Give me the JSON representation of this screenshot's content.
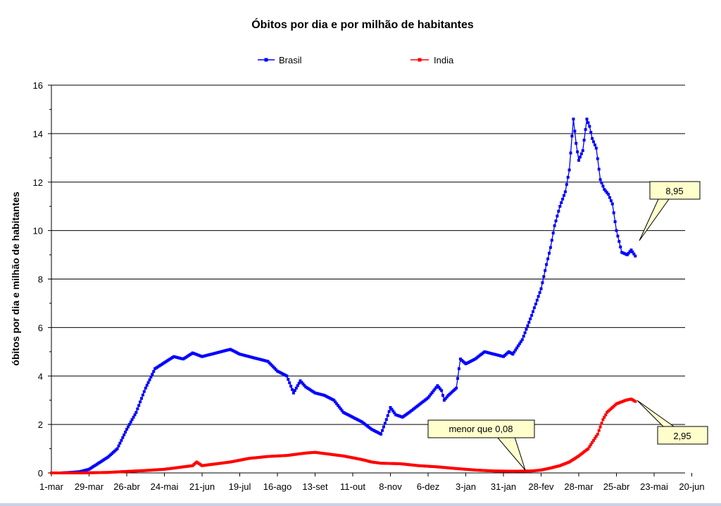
{
  "chart_data": {
    "type": "line",
    "title": "Óbitos por dia e por milhão de habitantes",
    "ylabel": "óbitos por dia e milhão de habitantes",
    "xlabel": "",
    "ylim": [
      0,
      16
    ],
    "yticks": [
      0,
      2,
      4,
      6,
      8,
      10,
      12,
      14,
      16
    ],
    "grid": "horizontal",
    "legend_position": "top-center",
    "x_tick_labels": [
      "1-mar",
      "29-mar",
      "26-abr",
      "24-mai",
      "21-jun",
      "19-jul",
      "16-ago",
      "13-set",
      "11-out",
      "8-nov",
      "6-dez",
      "3-jan",
      "31-jan",
      "28-fev",
      "28-mar",
      "25-abr",
      "23-mai",
      "20-jun"
    ],
    "series": [
      {
        "name": "Brasil",
        "color": "#0000ff",
        "marker": "square",
        "points": [
          [
            0,
            0
          ],
          [
            7,
            0
          ],
          [
            14,
            0.02
          ],
          [
            21,
            0.05
          ],
          [
            28,
            0.15
          ],
          [
            35,
            0.4
          ],
          [
            42,
            0.65
          ],
          [
            49,
            1.0
          ],
          [
            56,
            1.8
          ],
          [
            63,
            2.5
          ],
          [
            70,
            3.5
          ],
          [
            77,
            4.3
          ],
          [
            84,
            4.55
          ],
          [
            91,
            4.8
          ],
          [
            98,
            4.7
          ],
          [
            105,
            4.95
          ],
          [
            112,
            4.8
          ],
          [
            119,
            4.9
          ],
          [
            126,
            5.0
          ],
          [
            133,
            5.1
          ],
          [
            140,
            4.9
          ],
          [
            147,
            4.8
          ],
          [
            154,
            4.7
          ],
          [
            161,
            4.6
          ],
          [
            168,
            4.2
          ],
          [
            175,
            4.0
          ],
          [
            180,
            3.3
          ],
          [
            185,
            3.8
          ],
          [
            189,
            3.55
          ],
          [
            196,
            3.3
          ],
          [
            203,
            3.2
          ],
          [
            210,
            3.0
          ],
          [
            217,
            2.5
          ],
          [
            224,
            2.3
          ],
          [
            231,
            2.1
          ],
          [
            238,
            1.8
          ],
          [
            245,
            1.6
          ],
          [
            249,
            2.2
          ],
          [
            252,
            2.7
          ],
          [
            256,
            2.4
          ],
          [
            261,
            2.3
          ],
          [
            266,
            2.5
          ],
          [
            273,
            2.8
          ],
          [
            280,
            3.1
          ],
          [
            287,
            3.6
          ],
          [
            290,
            3.4
          ],
          [
            292,
            3.0
          ],
          [
            295,
            3.2
          ],
          [
            301,
            3.5
          ],
          [
            304,
            4.7
          ],
          [
            308,
            4.5
          ],
          [
            315,
            4.7
          ],
          [
            322,
            5.0
          ],
          [
            329,
            4.9
          ],
          [
            336,
            4.8
          ],
          [
            340,
            5.0
          ],
          [
            343,
            4.9
          ],
          [
            350,
            5.5
          ],
          [
            357,
            6.5
          ],
          [
            364,
            7.6
          ],
          [
            368,
            8.6
          ],
          [
            371,
            9.3
          ],
          [
            374,
            10.2
          ],
          [
            378,
            11.0
          ],
          [
            382,
            11.6
          ],
          [
            385,
            12.5
          ],
          [
            388,
            14.6
          ],
          [
            390,
            13.6
          ],
          [
            392,
            12.9
          ],
          [
            395,
            13.3
          ],
          [
            398,
            14.6
          ],
          [
            400,
            14.3
          ],
          [
            402,
            13.8
          ],
          [
            405,
            13.4
          ],
          [
            408,
            12.1
          ],
          [
            411,
            11.7
          ],
          [
            414,
            11.5
          ],
          [
            417,
            11.1
          ],
          [
            420,
            10.0
          ],
          [
            424,
            9.1
          ],
          [
            428,
            9.0
          ],
          [
            431,
            9.2
          ],
          [
            434,
            8.95
          ]
        ],
        "callout": "8,95"
      },
      {
        "name": "India",
        "color": "#ff0000",
        "marker": "square",
        "points": [
          [
            0,
            0
          ],
          [
            21,
            0
          ],
          [
            42,
            0.02
          ],
          [
            56,
            0.06
          ],
          [
            70,
            0.1
          ],
          [
            84,
            0.15
          ],
          [
            98,
            0.25
          ],
          [
            105,
            0.3
          ],
          [
            108,
            0.45
          ],
          [
            112,
            0.3
          ],
          [
            119,
            0.35
          ],
          [
            133,
            0.45
          ],
          [
            147,
            0.6
          ],
          [
            161,
            0.68
          ],
          [
            175,
            0.72
          ],
          [
            189,
            0.82
          ],
          [
            196,
            0.85
          ],
          [
            203,
            0.8
          ],
          [
            217,
            0.7
          ],
          [
            231,
            0.55
          ],
          [
            238,
            0.45
          ],
          [
            245,
            0.4
          ],
          [
            259,
            0.38
          ],
          [
            273,
            0.3
          ],
          [
            287,
            0.25
          ],
          [
            301,
            0.18
          ],
          [
            315,
            0.12
          ],
          [
            329,
            0.08
          ],
          [
            343,
            0.07
          ],
          [
            357,
            0.08
          ],
          [
            364,
            0.12
          ],
          [
            371,
            0.2
          ],
          [
            378,
            0.3
          ],
          [
            385,
            0.45
          ],
          [
            392,
            0.7
          ],
          [
            399,
            1.0
          ],
          [
            406,
            1.6
          ],
          [
            410,
            2.2
          ],
          [
            413,
            2.5
          ],
          [
            420,
            2.85
          ],
          [
            427,
            3.0
          ],
          [
            431,
            3.05
          ],
          [
            434,
            2.95
          ]
        ],
        "callout": "2,95"
      }
    ],
    "annotations": [
      {
        "text": "menor que 0,08",
        "series": "India"
      }
    ]
  }
}
